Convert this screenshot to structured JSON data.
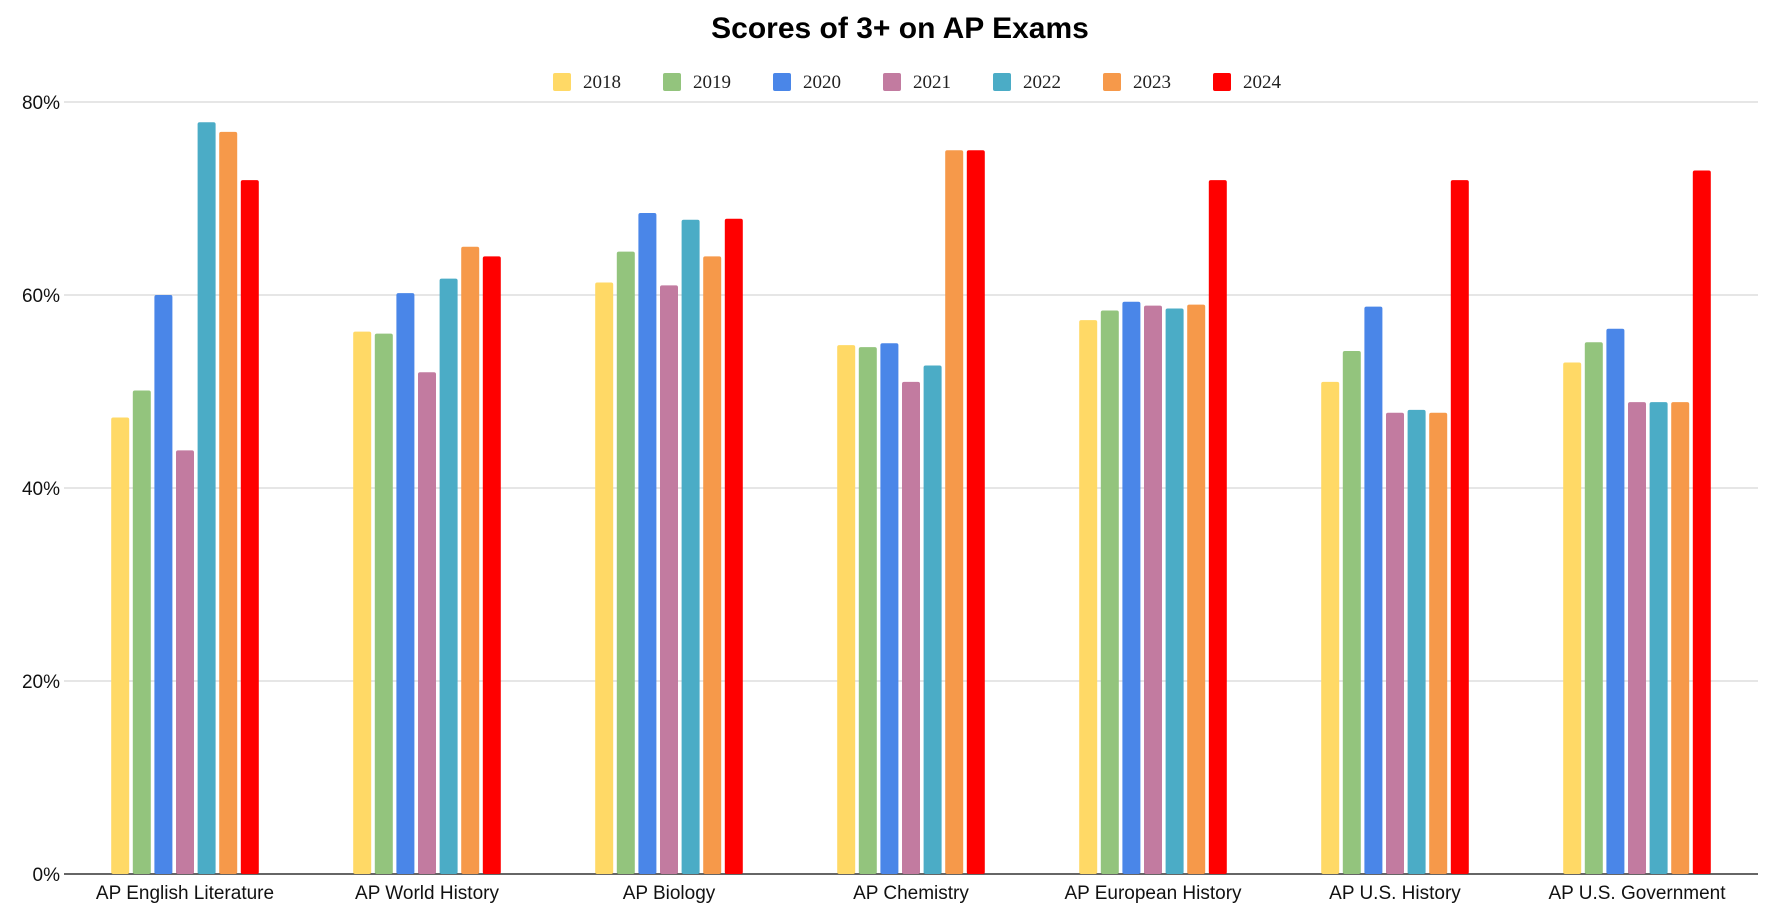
{
  "chart_data": {
    "type": "bar",
    "title": "Scores of 3+ on AP Exams",
    "xlabel": "",
    "ylabel": "",
    "ylim": [
      0,
      80
    ],
    "yticks": [
      0,
      20,
      40,
      60,
      80
    ],
    "ytick_labels": [
      "0%",
      "20%",
      "40%",
      "60%",
      "80%"
    ],
    "grid": true,
    "legend_position": "top-center",
    "categories": [
      "AP English Literature",
      "AP World History",
      "AP Biology",
      "AP Chemistry",
      "AP European History",
      "AP U.S. History",
      "AP U.S. Government"
    ],
    "series": [
      {
        "name": "2018",
        "color": "#FFD966",
        "values": [
          47.3,
          56.2,
          61.3,
          54.8,
          57.4,
          51.0,
          53.0
        ]
      },
      {
        "name": "2019",
        "color": "#93C47D",
        "values": [
          50.1,
          56.0,
          64.5,
          54.6,
          58.4,
          54.2,
          55.1
        ]
      },
      {
        "name": "2020",
        "color": "#4A86E8",
        "values": [
          60.0,
          60.2,
          68.5,
          55.0,
          59.3,
          58.8,
          56.5
        ]
      },
      {
        "name": "2021",
        "color": "#C27BA0",
        "values": [
          43.9,
          52.0,
          61.0,
          51.0,
          58.9,
          47.8,
          48.9
        ]
      },
      {
        "name": "2022",
        "color": "#4BACC6",
        "values": [
          77.9,
          61.7,
          67.8,
          52.7,
          58.6,
          48.1,
          48.9
        ]
      },
      {
        "name": "2023",
        "color": "#F6994A",
        "values": [
          76.9,
          65.0,
          64.0,
          75.0,
          59.0,
          47.8,
          48.9
        ]
      },
      {
        "name": "2024",
        "color": "#FF0000",
        "values": [
          71.9,
          64.0,
          67.9,
          75.0,
          71.9,
          71.9,
          72.9
        ]
      }
    ]
  }
}
